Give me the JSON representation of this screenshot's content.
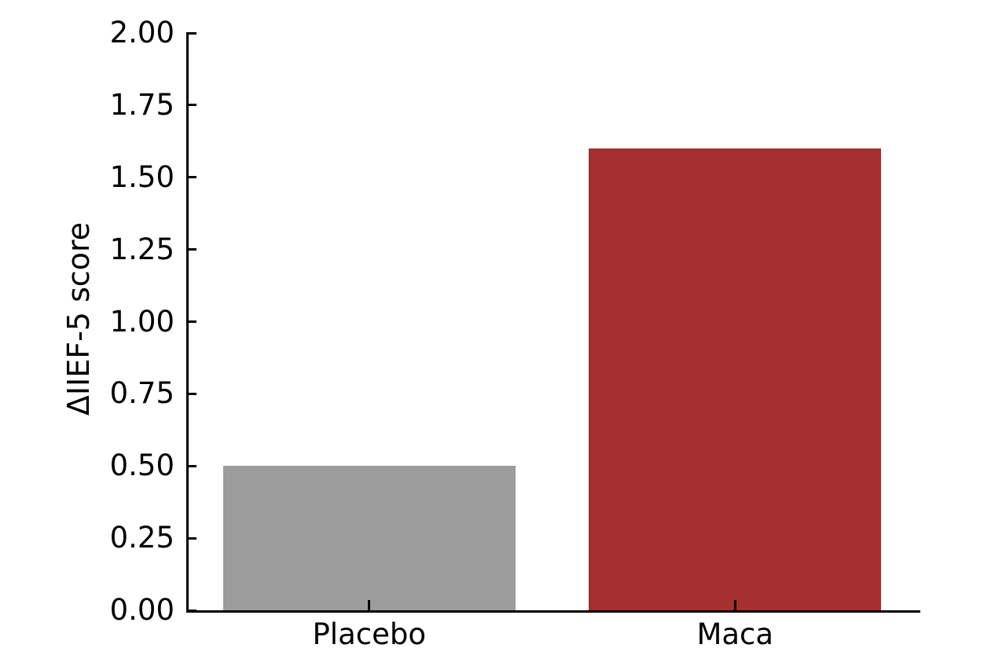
{
  "figure": {
    "background": "#ffffff",
    "text_color": "#000000",
    "axis_color": "#000000"
  },
  "chart_data": {
    "type": "bar",
    "categories": [
      "Placebo",
      "Maca"
    ],
    "values": [
      0.5,
      1.6
    ],
    "bar_colors": [
      "#9c9c9c",
      "#a53030"
    ],
    "title": "",
    "xlabel": "",
    "ylabel": "ΔIIEF-5 score",
    "ylim": [
      0,
      2
    ],
    "ytick_step": 0.25,
    "ytick_labels": [
      "0.00",
      "0.25",
      "0.50",
      "0.75",
      "1.00",
      "1.25",
      "1.50",
      "1.75",
      "2.00"
    ],
    "grid": false,
    "legend": null,
    "tick_direction": "in"
  }
}
